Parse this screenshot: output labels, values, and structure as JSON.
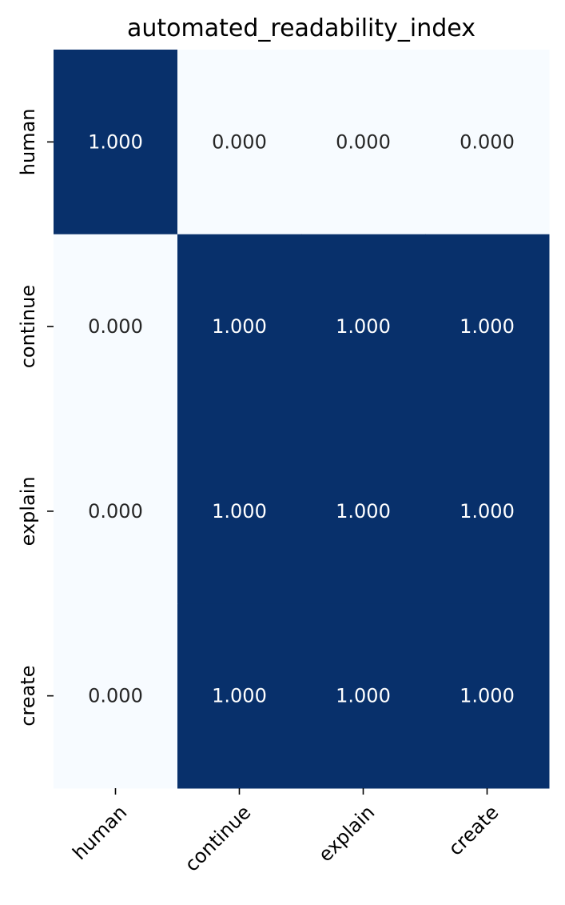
{
  "chart_data": {
    "type": "heatmap",
    "title": "automated_readability_index",
    "xlabel": "",
    "ylabel": "",
    "x_categories": [
      "human",
      "continue",
      "explain",
      "create"
    ],
    "y_categories": [
      "human",
      "continue",
      "explain",
      "create"
    ],
    "values": [
      [
        1.0,
        0.0,
        0.0,
        0.0
      ],
      [
        0.0,
        1.0,
        1.0,
        1.0
      ],
      [
        0.0,
        1.0,
        1.0,
        1.0
      ],
      [
        0.0,
        1.0,
        1.0,
        1.0
      ]
    ],
    "value_format": "0.000",
    "colormap": "Blues",
    "vmin": 0,
    "vmax": 1,
    "colors": {
      "low": "#f7fbff",
      "high": "#08306b",
      "text_on_dark": "#ffffff",
      "text_on_light": "#262626"
    },
    "colorbar": false
  }
}
